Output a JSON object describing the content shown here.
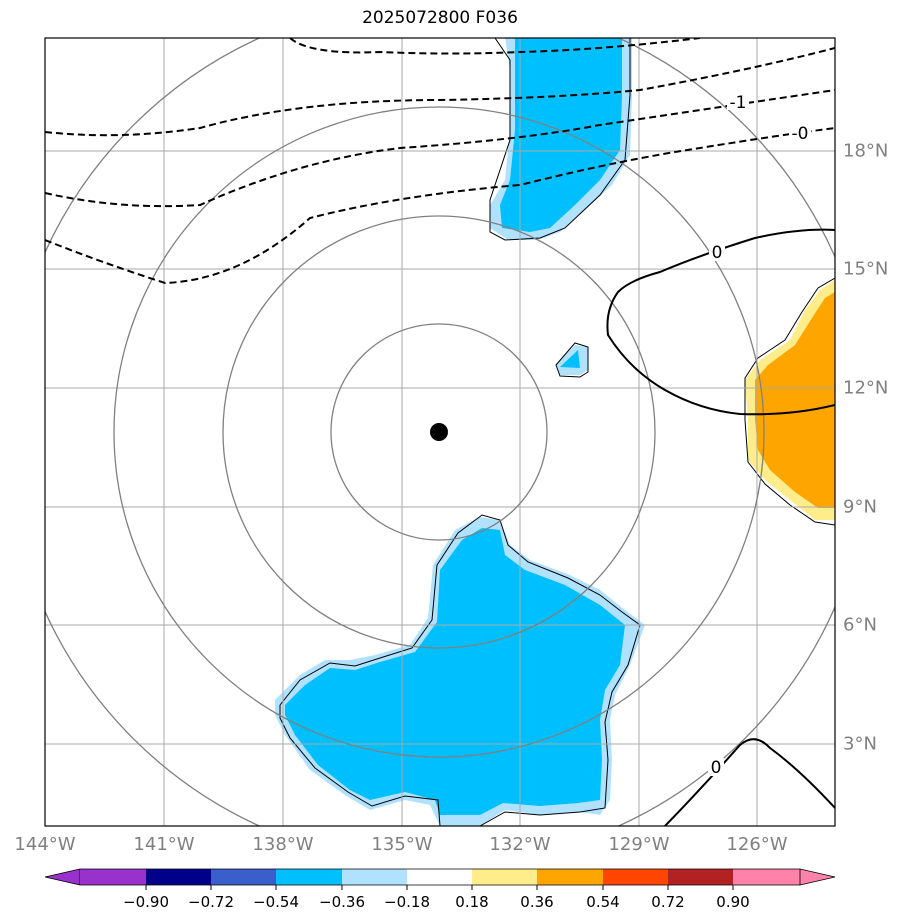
{
  "title": "2025072800 F036",
  "lon_labels": [
    "144°W",
    "141°W",
    "138°W",
    "135°W",
    "132°W",
    "129°W",
    "126°W"
  ],
  "lat_labels": [
    "18°N",
    "15°N",
    "12°N",
    "9°N",
    "6°N",
    "3°N"
  ],
  "contour_labels": [
    "-1",
    "-0",
    "0",
    "0"
  ],
  "colorbar": {
    "ticks": [
      "−0.90",
      "−0.72",
      "−0.54",
      "−0.36",
      "−0.18",
      "0.18",
      "0.36",
      "0.54",
      "0.72",
      "0.90"
    ],
    "colors": [
      "#9932cc",
      "#00008b",
      "#3a5fcd",
      "#00bfff",
      "#b0e2ff",
      "#ffffff",
      "#ffec8b",
      "#ffa500",
      "#ff4500",
      "#b22222",
      "#ff82ab"
    ]
  },
  "colors": {
    "negative_fill": "#00bfff",
    "negative_edge": "#b0e2ff",
    "positive_fill": "#ffa500",
    "positive_edge": "#ffec8b",
    "grid": "#a9a9a9",
    "range_rings": "#808080"
  }
}
